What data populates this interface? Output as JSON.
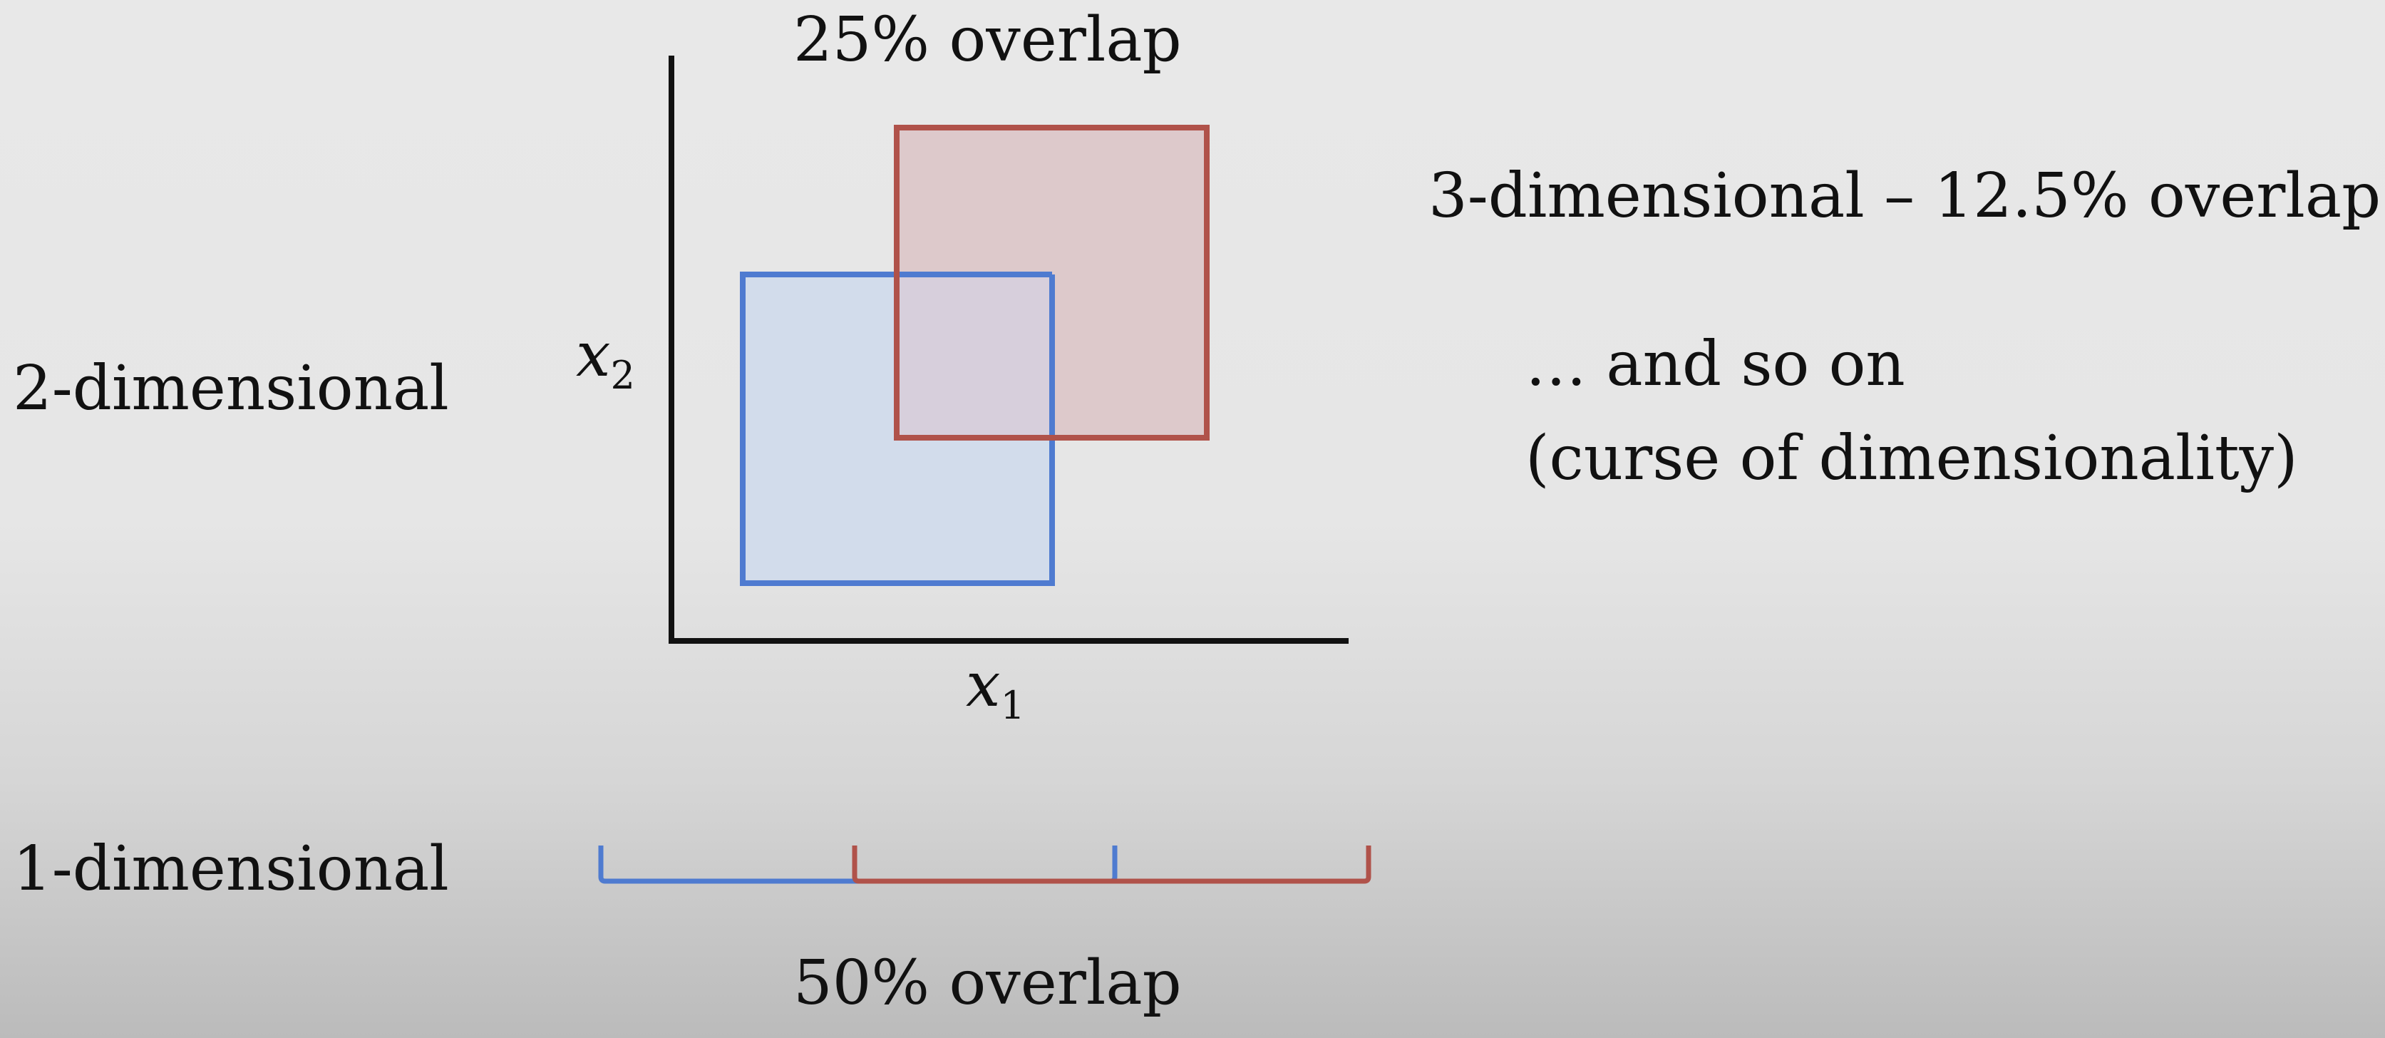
{
  "labels": {
    "top_overlap": "25% overlap",
    "three_dim": "3-dimensional – 12.5% overlap",
    "and_so_on": "… and so on",
    "curse": "(curse of dimensionality)",
    "two_dim": "2-dimensional",
    "one_dim": "1-dimensional",
    "bottom_overlap": "50% overlap"
  },
  "axes": {
    "x_var": "x",
    "x_sub": "1",
    "y_var": "x",
    "y_sub": "2"
  },
  "colors": {
    "blue_stroke": "#4f7bd0",
    "blue_fill": "#d2dceb",
    "red_stroke": "#b0524a",
    "red_fill": "#ddc9cb",
    "overlap_fill": "#d7cfdc",
    "axis": "#111111"
  }
}
